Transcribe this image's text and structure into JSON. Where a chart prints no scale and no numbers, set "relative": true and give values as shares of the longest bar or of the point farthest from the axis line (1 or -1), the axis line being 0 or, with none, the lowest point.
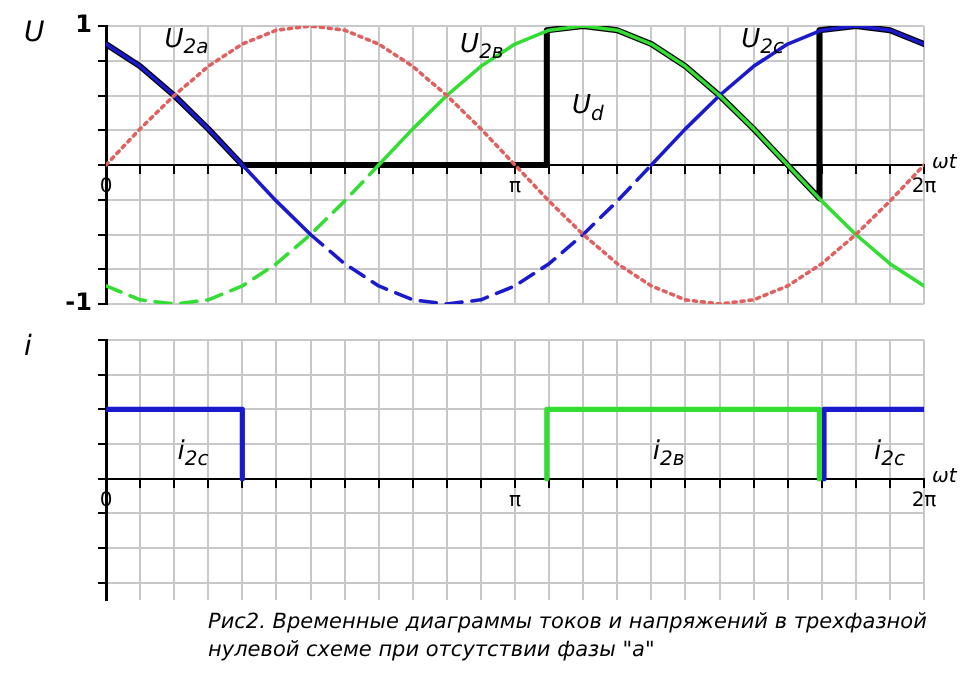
{
  "chart_data": [
    {
      "type": "line",
      "xlabel": "ωt",
      "ylabel": "U",
      "xlim": [
        0,
        6.2832
      ],
      "ylim": [
        -1,
        1
      ],
      "grid": true,
      "x": [
        0,
        0.2618,
        0.5236,
        0.7854,
        1.0472,
        1.309,
        1.5708,
        1.8326,
        2.0944,
        2.3562,
        2.618,
        2.8798,
        3.1416,
        3.4034,
        3.6652,
        3.927,
        4.1888,
        4.4506,
        4.7124,
        4.9742,
        5.236,
        5.4978,
        5.7596,
        6.0214,
        6.2832
      ],
      "xticks": [
        0,
        {
          "value": 0.2618,
          "label": null
        },
        {
          "value": 0.5236,
          "label": null
        },
        {
          "value": 0.7854,
          "label": null
        },
        {
          "value": 1.0472,
          "label": null
        },
        {
          "value": 1.309,
          "label": null
        },
        {
          "value": 1.5708,
          "label": null
        },
        {
          "value": 1.8326,
          "label": null
        },
        {
          "value": 2.0944,
          "label": null
        },
        {
          "value": 2.3562,
          "label": null
        },
        {
          "value": 2.618,
          "label": null
        },
        {
          "value": 2.8798,
          "label": null
        },
        {
          "value": 3.1416,
          "label": "π"
        },
        {
          "value": 3.4034,
          "label": null
        },
        {
          "value": 3.6652,
          "label": null
        },
        {
          "value": 3.927,
          "label": null
        },
        {
          "value": 4.1888,
          "label": null
        },
        {
          "value": 4.4506,
          "label": null
        },
        {
          "value": 4.7124,
          "label": null
        },
        {
          "value": 4.9742,
          "label": null
        },
        {
          "value": 5.236,
          "label": null
        },
        {
          "value": 5.4978,
          "label": null
        },
        {
          "value": 5.7596,
          "label": null
        },
        {
          "value": 6.0214,
          "label": null
        },
        {
          "value": 6.2832,
          "label": "2π"
        }
      ],
      "yticks": [
        -1,
        {
          "value": -0.75,
          "label": null
        },
        {
          "value": -0.5,
          "label": null
        },
        {
          "value": -0.25,
          "label": null
        },
        {
          "value": 0,
          "label": null
        },
        {
          "value": 0.25,
          "label": null
        },
        {
          "value": 0.5,
          "label": null
        },
        {
          "value": 0.75,
          "label": null
        },
        1
      ],
      "series": [
        {
          "name": "U$_{2a}$",
          "color": "#e06060",
          "line_style": "dotted",
          "values": [
            0,
            0.26,
            0.5,
            0.71,
            0.87,
            0.97,
            1,
            0.97,
            0.87,
            0.71,
            0.5,
            0.26,
            0,
            -0.26,
            -0.5,
            -0.71,
            -0.87,
            -0.97,
            -1,
            -0.97,
            -0.87,
            -0.71,
            -0.5,
            -0.26,
            0
          ]
        },
        {
          "color": "#33dd33",
          "line_style": "dashed",
          "values": [
            -0.87,
            -0.97,
            -1,
            -0.97,
            -0.87,
            -0.71,
            -0.5,
            -0.26,
            0,
            null,
            null,
            null,
            null,
            null,
            null,
            null,
            null,
            null,
            null,
            null,
            null,
            null,
            null,
            null,
            null
          ]
        },
        {
          "name": "U$_{2в}$",
          "color": "#33dd33",
          "line_style": "solid",
          "values": [
            null,
            null,
            null,
            null,
            null,
            null,
            null,
            null,
            0,
            0.26,
            0.5,
            0.71,
            0.87,
            0.97,
            1,
            0.97,
            0.87,
            0.71,
            0.5,
            0.26,
            0,
            -0.26,
            -0.5,
            -0.71,
            -0.87
          ]
        },
        {
          "color": "#1a1acc",
          "line_style": "dashed",
          "values": [
            null,
            null,
            null,
            null,
            null,
            null,
            -0.5,
            -0.71,
            -0.87,
            -0.97,
            -1,
            -0.97,
            -0.87,
            -0.71,
            -0.5,
            -0.26,
            0,
            null,
            null,
            null,
            null,
            null,
            null,
            null,
            null
          ]
        },
        {
          "name": "U$_{2c}$",
          "color": "#1a1acc",
          "line_style": "solid",
          "values": [
            0.87,
            0.71,
            0.5,
            0.26,
            0,
            -0.26,
            -0.5,
            null,
            null,
            null,
            null,
            null,
            null,
            null,
            null,
            null,
            0,
            0.26,
            0.5,
            0.71,
            0.87,
            0.97,
            1,
            0.97,
            0.87
          ]
        },
        {
          "name": "U$_{d}$",
          "color": "#000000",
          "line_style": "solid",
          "x": [
            0,
            0.2618,
            0.5236,
            0.7854,
            1.0472,
            3.386,
            3.386,
            3.6652,
            3.927,
            4.1888,
            4.4506,
            4.7124,
            4.9742,
            5.236,
            5.48,
            5.48,
            5.7596,
            6.0214,
            6.2832
          ],
          "values": [
            0.87,
            0.71,
            0.5,
            0.26,
            0,
            0,
            0.97,
            1,
            0.97,
            0.87,
            0.71,
            0.5,
            0.26,
            0,
            -0.24,
            0.97,
            1,
            0.97,
            0.87
          ]
        }
      ]
    },
    {
      "type": "line",
      "xlabel": "ωt",
      "ylabel": "i",
      "xlim": [
        0,
        6.2832
      ],
      "relative": true,
      "tick_labels": "x",
      "grid": true,
      "xticks": [
        0,
        {
          "value": 0.2618,
          "label": null
        },
        {
          "value": 0.5236,
          "label": null
        },
        {
          "value": 0.7854,
          "label": null
        },
        {
          "value": 1.0472,
          "label": null
        },
        {
          "value": 1.309,
          "label": null
        },
        {
          "value": 1.5708,
          "label": null
        },
        {
          "value": 1.8326,
          "label": null
        },
        {
          "value": 2.0944,
          "label": null
        },
        {
          "value": 2.3562,
          "label": null
        },
        {
          "value": 2.618,
          "label": null
        },
        {
          "value": 2.8798,
          "label": null
        },
        {
          "value": 3.1416,
          "label": "π"
        },
        {
          "value": 3.4034,
          "label": null
        },
        {
          "value": 3.6652,
          "label": null
        },
        {
          "value": 3.927,
          "label": null
        },
        {
          "value": 4.1888,
          "label": null
        },
        {
          "value": 4.4506,
          "label": null
        },
        {
          "value": 4.7124,
          "label": null
        },
        {
          "value": 4.9742,
          "label": null
        },
        {
          "value": 5.236,
          "label": null
        },
        {
          "value": 5.4978,
          "label": null
        },
        {
          "value": 5.7596,
          "label": null
        },
        {
          "value": 6.0214,
          "label": null
        },
        {
          "value": 6.2832,
          "label": "2π"
        }
      ],
      "series": [
        {
          "name": "i$_{2c}$",
          "color": "#1a1acc",
          "x": [
            0,
            1.0472,
            1.0472
          ],
          "values": [
            1,
            1,
            0
          ]
        },
        {
          "name": "i$_{2в}$",
          "color": "#33dd33",
          "x": [
            3.386,
            3.386,
            5.48,
            5.48
          ],
          "values": [
            0,
            1,
            1,
            0
          ]
        },
        {
          "name": "i$_{2c}$",
          "color": "#1a1acc",
          "x": [
            5.515,
            5.515,
            6.2832
          ],
          "values": [
            0,
            1,
            1
          ]
        }
      ],
      "annotations": [
        "Рис2.  Временные диаграммы токов и напряжений в трехфазной нулевой схеме при отсутствии фазы \"а\""
      ]
    }
  ]
}
